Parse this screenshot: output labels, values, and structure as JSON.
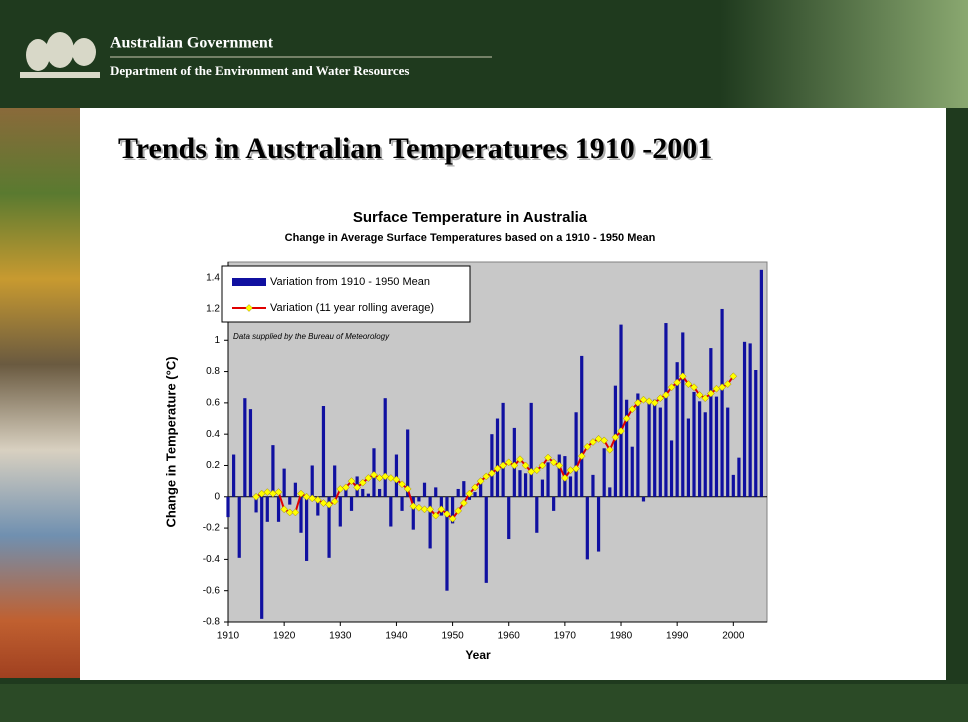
{
  "header": {
    "org": "Australian Government",
    "dept": "Department of the Environment and Water Resources"
  },
  "slide_title": "Trends in Australian Temperatures 1910 -2001",
  "chart_data": {
    "type": "bar_line",
    "title": "Surface Temperature in Australia",
    "subtitle": "Change in Average Surface Temperatures based on a 1910 - 1950 Mean",
    "x_label": "Year",
    "y_label": "Change in Temperature (°C)",
    "annotation": "Data supplied by the Bureau of Meteorology",
    "legend": "top-left",
    "xlim": [
      1910,
      2006
    ],
    "xticks": [
      1910,
      1920,
      1930,
      1940,
      1950,
      1960,
      1970,
      1980,
      1990,
      2000
    ],
    "ylim": [
      -0.8,
      1.5
    ],
    "yticks": [
      -0.8,
      -0.6,
      -0.4,
      -0.2,
      0,
      0.2,
      0.4,
      0.6,
      0.8,
      1,
      1.2,
      1.4
    ],
    "series": [
      {
        "name": "Variation from 1910 - 1950 Mean",
        "type": "bar",
        "color": "#1010a0",
        "x": [
          1910,
          1911,
          1912,
          1913,
          1914,
          1915,
          1916,
          1917,
          1918,
          1919,
          1920,
          1921,
          1922,
          1923,
          1924,
          1925,
          1926,
          1927,
          1928,
          1929,
          1930,
          1931,
          1932,
          1933,
          1934,
          1935,
          1936,
          1937,
          1938,
          1939,
          1940,
          1941,
          1942,
          1943,
          1944,
          1945,
          1946,
          1947,
          1948,
          1949,
          1950,
          1951,
          1952,
          1953,
          1954,
          1955,
          1956,
          1957,
          1958,
          1959,
          1960,
          1961,
          1962,
          1963,
          1964,
          1965,
          1966,
          1967,
          1968,
          1969,
          1970,
          1971,
          1972,
          1973,
          1974,
          1975,
          1976,
          1977,
          1978,
          1979,
          1980,
          1981,
          1982,
          1983,
          1984,
          1985,
          1986,
          1987,
          1988,
          1989,
          1990,
          1991,
          1992,
          1993,
          1994,
          1995,
          1996,
          1997,
          1998,
          1999,
          2000,
          2001,
          2002,
          2003,
          2004,
          2005
        ],
        "values": [
          -0.13,
          0.27,
          -0.39,
          0.63,
          0.56,
          -0.1,
          -0.78,
          -0.16,
          0.33,
          -0.16,
          0.18,
          -0.05,
          0.09,
          -0.23,
          -0.41,
          0.2,
          -0.12,
          0.58,
          -0.39,
          0.2,
          -0.19,
          0.05,
          -0.09,
          0.13,
          0.05,
          0.02,
          0.31,
          0.05,
          0.63,
          -0.19,
          0.27,
          -0.09,
          0.43,
          -0.21,
          -0.03,
          0.09,
          -0.33,
          0.06,
          -0.12,
          -0.6,
          -0.17,
          0.05,
          0.1,
          -0.02,
          0.03,
          0.1,
          -0.55,
          0.4,
          0.5,
          0.6,
          -0.27,
          0.44,
          0.17,
          0.15,
          0.6,
          -0.23,
          0.11,
          0.22,
          -0.09,
          0.27,
          0.26,
          0.13,
          0.54,
          0.9,
          -0.4,
          0.14,
          -0.35,
          0.31,
          0.06,
          0.71,
          1.1,
          0.62,
          0.32,
          0.66,
          -0.03,
          0.61,
          0.62,
          0.57,
          1.11,
          0.36,
          0.86,
          1.05,
          0.5,
          0.67,
          0.61,
          0.54,
          0.95,
          0.64,
          1.2,
          0.57,
          0.14,
          0.25,
          0.99,
          0.98,
          0.81,
          1.45
        ]
      },
      {
        "name": "Variation (11 year rolling average)",
        "type": "line",
        "color": "#e00000",
        "marker_color": "#ffff00",
        "x": [
          1915,
          1916,
          1917,
          1918,
          1919,
          1920,
          1921,
          1922,
          1923,
          1924,
          1925,
          1926,
          1927,
          1928,
          1929,
          1930,
          1931,
          1932,
          1933,
          1934,
          1935,
          1936,
          1937,
          1938,
          1939,
          1940,
          1941,
          1942,
          1943,
          1944,
          1945,
          1946,
          1947,
          1948,
          1949,
          1950,
          1951,
          1952,
          1953,
          1954,
          1955,
          1956,
          1957,
          1958,
          1959,
          1960,
          1961,
          1962,
          1963,
          1964,
          1965,
          1966,
          1967,
          1968,
          1969,
          1970,
          1971,
          1972,
          1973,
          1974,
          1975,
          1976,
          1977,
          1978,
          1979,
          1980,
          1981,
          1982,
          1983,
          1984,
          1985,
          1986,
          1987,
          1988,
          1989,
          1990,
          1991,
          1992,
          1993,
          1994,
          1995,
          1996,
          1997,
          1998,
          1999,
          2000
        ],
        "values": [
          0.0,
          0.02,
          0.03,
          0.02,
          0.03,
          -0.08,
          -0.1,
          -0.1,
          0.02,
          0.0,
          -0.01,
          -0.02,
          -0.04,
          -0.05,
          -0.03,
          0.05,
          0.06,
          0.1,
          0.06,
          0.09,
          0.12,
          0.14,
          0.12,
          0.13,
          0.12,
          0.11,
          0.08,
          0.05,
          -0.06,
          -0.07,
          -0.08,
          -0.08,
          -0.12,
          -0.08,
          -0.11,
          -0.14,
          -0.09,
          -0.04,
          0.02,
          0.06,
          0.1,
          0.13,
          0.15,
          0.18,
          0.2,
          0.22,
          0.2,
          0.24,
          0.2,
          0.16,
          0.17,
          0.2,
          0.25,
          0.22,
          0.2,
          0.12,
          0.17,
          0.18,
          0.26,
          0.32,
          0.35,
          0.37,
          0.36,
          0.3,
          0.38,
          0.42,
          0.5,
          0.56,
          0.6,
          0.62,
          0.61,
          0.6,
          0.63,
          0.65,
          0.7,
          0.73,
          0.77,
          0.72,
          0.7,
          0.65,
          0.63,
          0.66,
          0.69,
          0.7,
          0.72,
          0.77
        ]
      }
    ]
  }
}
